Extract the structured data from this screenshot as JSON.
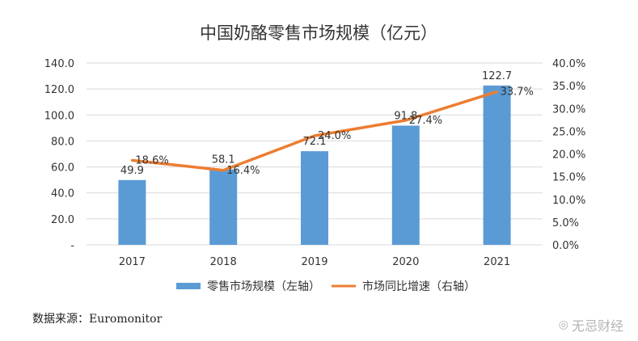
{
  "chart_data": {
    "type": "bar",
    "title": "中国奶酪零售市场规模（亿元）",
    "categories": [
      "2017",
      "2018",
      "2019",
      "2020",
      "2021"
    ],
    "series": [
      {
        "name": "零售市场规模（左轴）",
        "type": "bar",
        "axis": "left",
        "values": [
          49.9,
          58.1,
          72.1,
          91.8,
          122.7
        ],
        "labels": [
          "49.9",
          "58.1",
          "72.1",
          "91.8",
          "122.7"
        ]
      },
      {
        "name": "市场同比增速（右轴）",
        "type": "line",
        "axis": "right",
        "values": [
          18.6,
          16.4,
          24.0,
          27.4,
          33.7
        ],
        "labels": [
          "18.6%",
          "16.4%",
          "24.0%",
          "27.4%",
          "33.7%"
        ]
      }
    ],
    "left_axis": {
      "ylim": [
        0,
        140
      ],
      "ticks": [
        "-",
        "20.0",
        "40.0",
        "60.0",
        "80.0",
        "100.0",
        "120.0",
        "140.0"
      ]
    },
    "right_axis": {
      "ylim": [
        0,
        40
      ],
      "ticks": [
        "0.0%",
        "5.0%",
        "10.0%",
        "15.0%",
        "20.0%",
        "25.0%",
        "30.0%",
        "35.0%",
        "40.0%"
      ]
    },
    "grid": true,
    "legend_position": "bottom",
    "colors": {
      "bar": "#5b9bd5",
      "line": "#ed7d31",
      "grid": "#d9d9d9"
    }
  },
  "source": "数据来源：Euromonitor",
  "watermark": "无忌财经",
  "watermark_icon": "weibo-icon"
}
